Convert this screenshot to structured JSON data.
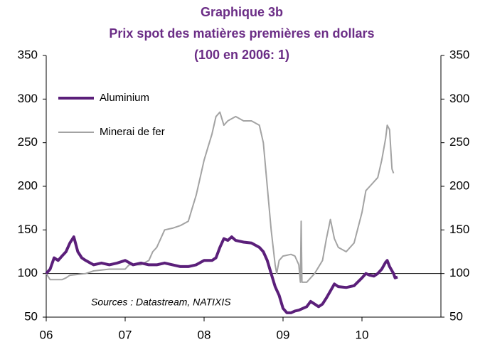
{
  "chart_data": {
    "type": "line",
    "title": "Graphique 3b",
    "subtitle": "Prix spot des matières premières en dollars",
    "subtitle2": "(100 en 2006: 1)",
    "annotation": "Sources : Datastream, NATIXIS",
    "xlim": [
      2006,
      2011
    ],
    "xticks": [
      {
        "value": 2006,
        "label": "06"
      },
      {
        "value": 2007,
        "label": "07"
      },
      {
        "value": 2008,
        "label": "08"
      },
      {
        "value": 2009,
        "label": "09"
      },
      {
        "value": 2010,
        "label": "10"
      }
    ],
    "ylim": [
      50,
      350
    ],
    "yticks": [
      50,
      100,
      150,
      200,
      250,
      300,
      350
    ],
    "y2lim": [
      50,
      350
    ],
    "y2ticks": [
      50,
      100,
      150,
      200,
      250,
      300,
      350
    ],
    "reference_line": 100,
    "legend": "upper left",
    "series": [
      {
        "name": "Aluminium",
        "color": "#5b1f7a",
        "x": [
          2006.0,
          2006.05,
          2006.1,
          2006.15,
          2006.2,
          2006.25,
          2006.3,
          2006.35,
          2006.4,
          2006.45,
          2006.5,
          2006.6,
          2006.7,
          2006.8,
          2006.9,
          2007.0,
          2007.1,
          2007.2,
          2007.3,
          2007.4,
          2007.5,
          2007.6,
          2007.7,
          2007.8,
          2007.9,
          2008.0,
          2008.1,
          2008.15,
          2008.2,
          2008.25,
          2008.3,
          2008.35,
          2008.4,
          2008.5,
          2008.6,
          2008.7,
          2008.75,
          2008.8,
          2008.85,
          2008.9,
          2008.95,
          2009.0,
          2009.05,
          2009.1,
          2009.15,
          2009.2,
          2009.3,
          2009.35,
          2009.4,
          2009.45,
          2009.5,
          2009.55,
          2009.6,
          2009.65,
          2009.7,
          2009.8,
          2009.9,
          2010.0,
          2010.05,
          2010.1,
          2010.15,
          2010.2,
          2010.25,
          2010.3,
          2010.32,
          2010.35,
          2010.4,
          2010.42,
          2010.45
        ],
        "values": [
          100,
          105,
          118,
          115,
          120,
          125,
          135,
          142,
          125,
          118,
          115,
          110,
          112,
          110,
          112,
          115,
          110,
          112,
          110,
          110,
          112,
          110,
          108,
          108,
          110,
          115,
          115,
          118,
          130,
          140,
          138,
          142,
          138,
          136,
          135,
          130,
          125,
          115,
          100,
          85,
          75,
          60,
          55,
          55,
          57,
          58,
          62,
          68,
          65,
          62,
          65,
          72,
          80,
          88,
          85,
          84,
          86,
          95,
          100,
          98,
          97,
          100,
          105,
          113,
          115,
          108,
          100,
          95,
          96
        ]
      },
      {
        "name": "Minerai de fer",
        "color": "#a3a3a3",
        "x": [
          2006.0,
          2006.05,
          2006.1,
          2006.2,
          2006.25,
          2006.3,
          2006.5,
          2006.6,
          2006.8,
          2007.0,
          2007.05,
          2007.2,
          2007.3,
          2007.35,
          2007.4,
          2007.45,
          2007.5,
          2007.6,
          2007.7,
          2007.8,
          2007.85,
          2007.9,
          2007.95,
          2008.0,
          2008.05,
          2008.1,
          2008.15,
          2008.2,
          2008.25,
          2008.3,
          2008.4,
          2008.5,
          2008.6,
          2008.7,
          2008.75,
          2008.8,
          2008.85,
          2008.9,
          2008.92,
          2008.95,
          2009.0,
          2009.1,
          2009.15,
          2009.2,
          2009.22,
          2009.23,
          2009.24,
          2009.3,
          2009.35,
          2009.4,
          2009.5,
          2009.55,
          2009.6,
          2009.65,
          2009.7,
          2009.8,
          2009.9,
          2010.0,
          2010.05,
          2010.1,
          2010.2,
          2010.25,
          2010.3,
          2010.32,
          2010.35,
          2010.38,
          2010.4
        ],
        "values": [
          100,
          93,
          93,
          93,
          95,
          98,
          100,
          103,
          105,
          105,
          110,
          110,
          115,
          125,
          130,
          140,
          150,
          152,
          155,
          160,
          175,
          190,
          210,
          230,
          245,
          260,
          280,
          285,
          270,
          275,
          280,
          275,
          275,
          270,
          250,
          200,
          150,
          110,
          100,
          115,
          120,
          122,
          120,
          110,
          90,
          160,
          90,
          90,
          95,
          100,
          115,
          140,
          162,
          140,
          130,
          125,
          135,
          170,
          195,
          200,
          210,
          230,
          255,
          270,
          265,
          220,
          215
        ]
      }
    ]
  }
}
